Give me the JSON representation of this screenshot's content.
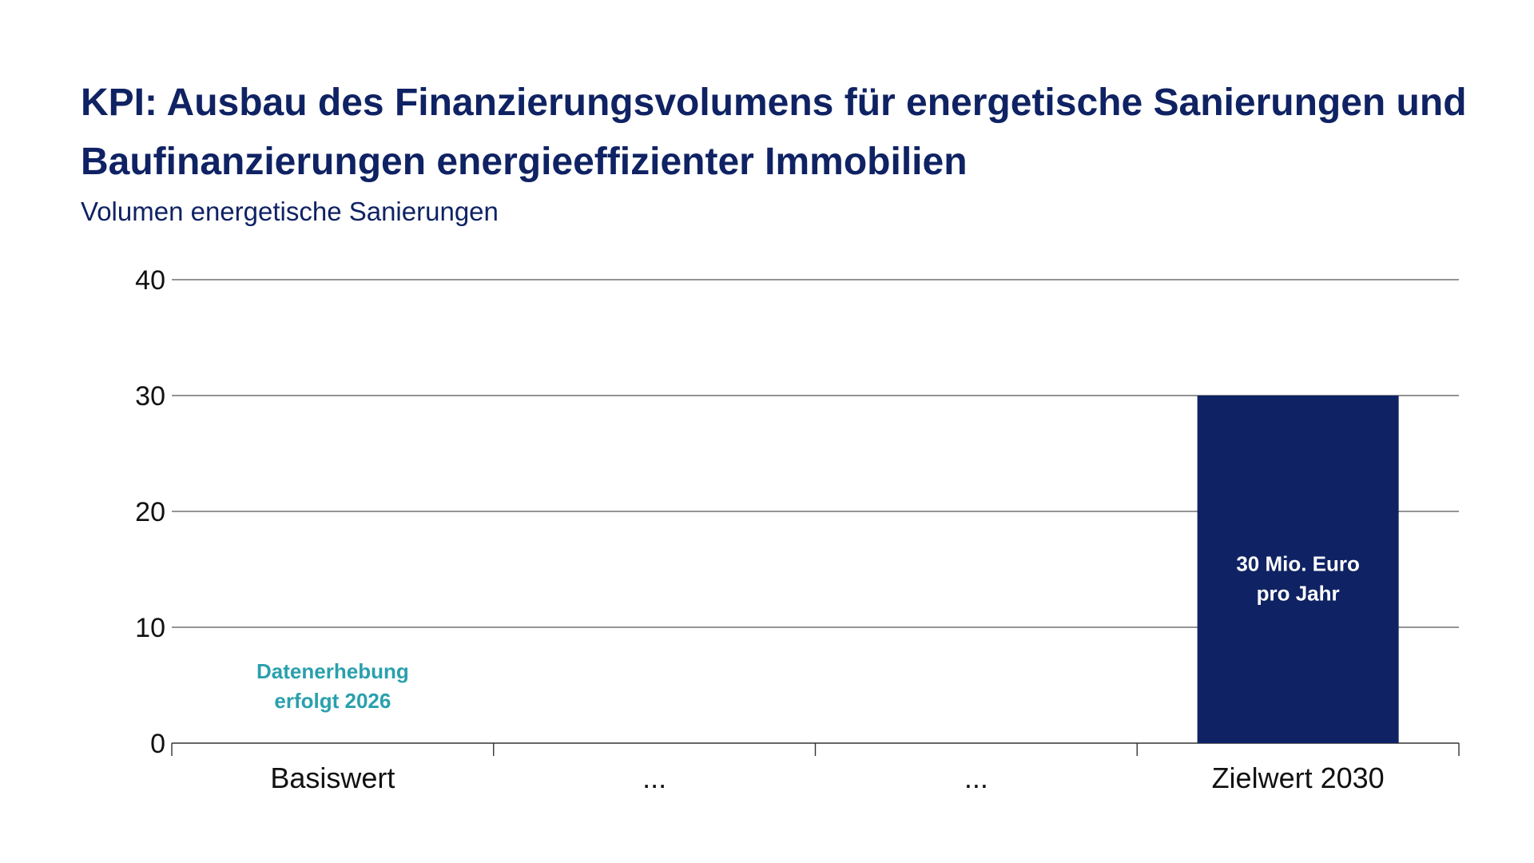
{
  "title": "KPI: Ausbau des Finanzierungsvolumens für energetische Sanierungen und Baufinanzierungen energieeffizienter Immobilien",
  "subtitle": "Volumen energetische Sanierungen",
  "colors": {
    "title": "#0f2263",
    "bar": "#0f2263",
    "annotation_teal": "#2aa0ad",
    "annotation_white": "#ffffff",
    "gridline": "#555555",
    "text": "#111111"
  },
  "chart_data": {
    "type": "bar",
    "title": "KPI: Ausbau des Finanzierungsvolumens für energetische Sanierungen und Baufinanzierungen energieeffizienter Immobilien",
    "subtitle": "Volumen energetische Sanierungen",
    "xlabel": "",
    "ylabel": "",
    "categories": [
      "Basiswert",
      "...",
      "...",
      "Zielwert 2030"
    ],
    "values": [
      null,
      null,
      null,
      30
    ],
    "ylim": [
      0,
      40
    ],
    "yticks": [
      0,
      10,
      20,
      30,
      40
    ],
    "grid": true,
    "legend": "none",
    "annotations": [
      {
        "category_index": 0,
        "lines": [
          "Datenerhebung",
          "erfolgt 2026"
        ],
        "color": "#2aa0ad"
      },
      {
        "category_index": 3,
        "lines": [
          "30 Mio. Euro",
          "pro Jahr"
        ],
        "color": "#ffffff"
      }
    ]
  }
}
